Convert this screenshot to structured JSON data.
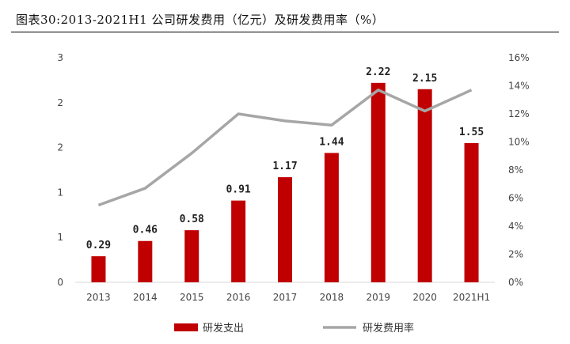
{
  "title": "图表30:2013-2021H1 公司研发费用（亿元）及研发费用率（%）",
  "colors": {
    "bar": "#c00000",
    "line": "#a6a6a6"
  },
  "chart_data": {
    "type": "bar",
    "categories": [
      "2013",
      "2014",
      "2015",
      "2016",
      "2017",
      "2018",
      "2019",
      "2020",
      "2021H1"
    ],
    "series": [
      {
        "name": "研发支出",
        "type": "bar",
        "axis": "left",
        "values": [
          0.29,
          0.46,
          0.58,
          0.91,
          1.17,
          1.44,
          2.22,
          2.15,
          1.55
        ],
        "labels": [
          "0.29",
          "0.46",
          "0.58",
          "0.91",
          "1.17",
          "1.44",
          "2.22",
          "2.15",
          "1.55"
        ]
      },
      {
        "name": "研发费用率",
        "type": "line",
        "axis": "right",
        "values": [
          5.5,
          6.7,
          9.2,
          12.0,
          11.5,
          11.2,
          13.7,
          12.2,
          13.7
        ]
      }
    ],
    "y_left": {
      "ticks": [
        "0",
        "1",
        "1",
        "2",
        "2",
        "3"
      ],
      "ylim": [
        0,
        2.5
      ]
    },
    "y_right": {
      "ticks": [
        "0%",
        "2%",
        "4%",
        "6%",
        "8%",
        "10%",
        "12%",
        "14%",
        "16%"
      ],
      "ylim": [
        0,
        16
      ]
    },
    "legend_position": "bottom",
    "grid": false
  }
}
